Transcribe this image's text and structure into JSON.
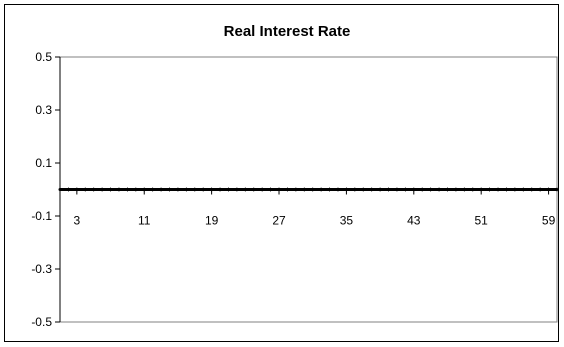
{
  "chart_data": {
    "type": "line",
    "title": "Real Interest Rate",
    "xlabel": "",
    "ylabel": "",
    "ylim": [
      -0.5,
      0.5
    ],
    "y_ticks": [
      "0.5",
      "0.3",
      "0.1",
      "-0.1",
      "-0.3",
      "-0.5"
    ],
    "y_tick_values": [
      0.5,
      0.3,
      0.1,
      -0.1,
      -0.3,
      -0.5
    ],
    "xlim": [
      1,
      60
    ],
    "x_ticks": [
      "3",
      "11",
      "19",
      "27",
      "35",
      "43",
      "51",
      "59"
    ],
    "x_tick_values": [
      3,
      11,
      19,
      27,
      35,
      43,
      51,
      59
    ],
    "grid": false,
    "legend": "none",
    "series": [
      {
        "color": "#000000",
        "x": [
          1,
          2,
          3,
          4,
          5,
          6,
          7,
          8,
          9,
          10,
          11,
          12,
          13,
          14,
          15,
          16,
          17,
          18,
          19,
          20,
          21,
          22,
          23,
          24,
          25,
          26,
          27,
          28,
          29,
          30,
          31,
          32,
          33,
          34,
          35,
          36,
          37,
          38,
          39,
          40,
          41,
          42,
          43,
          44,
          45,
          46,
          47,
          48,
          49,
          50,
          51,
          52,
          53,
          54,
          55,
          56,
          57,
          58,
          59,
          60
        ],
        "values": [
          0,
          0,
          0,
          0,
          0,
          0,
          0,
          0,
          0,
          0,
          0,
          0,
          0,
          0,
          0,
          0,
          0,
          0,
          0,
          0,
          0,
          0,
          0,
          0,
          0,
          0,
          0,
          0,
          0,
          0,
          0,
          0,
          0,
          0,
          0,
          0,
          0,
          0,
          0,
          0,
          0,
          0,
          0,
          0,
          0,
          0,
          0,
          0,
          0,
          0,
          0,
          0,
          0,
          0,
          0,
          0,
          0,
          0,
          0,
          0
        ]
      }
    ],
    "colors": {
      "axis": "#000000",
      "plot_border": "#808080",
      "line": "#000000"
    }
  }
}
